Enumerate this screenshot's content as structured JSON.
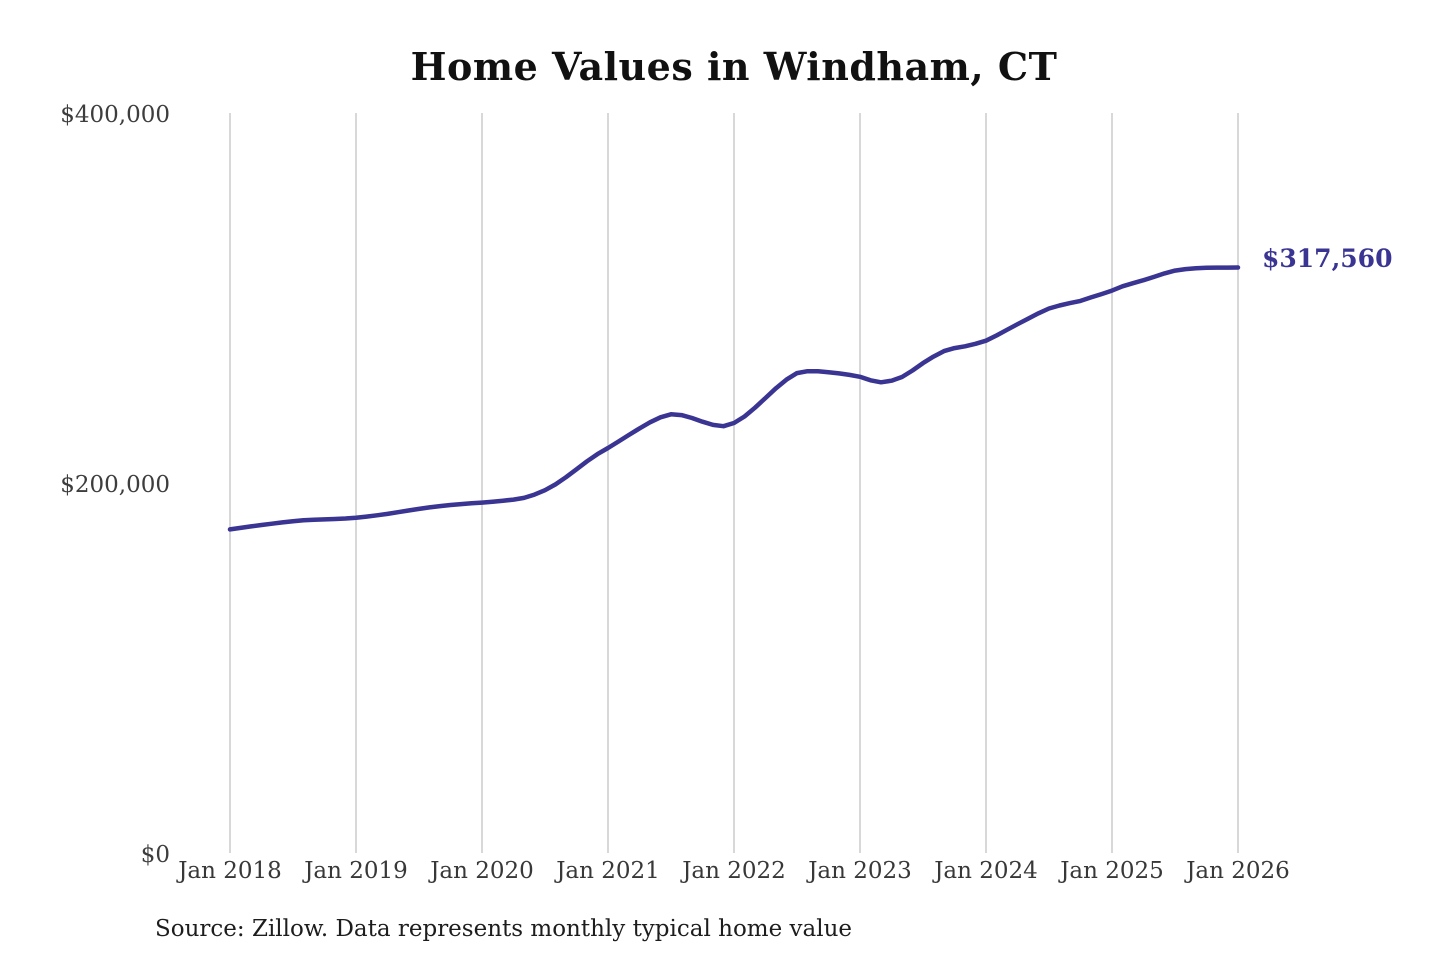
{
  "title": "Home Values in Windham, CT",
  "source_note": "Source: Zillow. Data represents monthly typical home value",
  "annotation": {
    "label": "$317,560",
    "color": "#3a3492"
  },
  "colors": {
    "line": "#3a3492",
    "gridline": "#cccccc",
    "background": "#ffffff",
    "title_text": "#111111",
    "tick_text": "#3d3d3d"
  },
  "chart_data": {
    "type": "line",
    "title": "Home Values in Windham, CT",
    "xlabel": "",
    "ylabel": "",
    "ylim": [
      0,
      400000
    ],
    "grid": "vertical-only",
    "legend": "none",
    "line_color": "#3a3492",
    "y_tick_labels": [
      "$0",
      "$200,000",
      "$400,000"
    ],
    "y_tick_values": [
      0,
      200000,
      400000
    ],
    "x_tick_labels": [
      "Jan 2018",
      "Jan 2019",
      "Jan 2020",
      "Jan 2021",
      "Jan 2022",
      "Jan 2023",
      "Jan 2024",
      "Jan 2025",
      "Jan 2026"
    ],
    "x_range": {
      "start": "2018-01",
      "end": "2026-01",
      "step": "monthly"
    },
    "end_label": "$317,560",
    "end_value": 317560,
    "series": [
      {
        "name": "Typical home value",
        "values": [
          176000,
          176800,
          177600,
          178400,
          179100,
          179800,
          180400,
          180900,
          181200,
          181400,
          181600,
          181900,
          182300,
          182900,
          183600,
          184400,
          185300,
          186200,
          187100,
          187900,
          188600,
          189200,
          189700,
          190100,
          190500,
          191000,
          191500,
          192100,
          193000,
          194800,
          197200,
          200300,
          204200,
          208500,
          212800,
          216700,
          220000,
          223500,
          227100,
          230600,
          233900,
          236600,
          238200,
          237800,
          236200,
          234200,
          232500,
          231800,
          233500,
          237000,
          241800,
          247000,
          252300,
          257000,
          260500,
          261500,
          261500,
          261000,
          260300,
          259500,
          258500,
          256600,
          255500,
          256400,
          258400,
          261900,
          265900,
          269400,
          272400,
          274000,
          275000,
          276300,
          278000,
          280800,
          283900,
          286900,
          289900,
          292800,
          295400,
          297000,
          298300,
          299500,
          301400,
          303200,
          305100,
          307400,
          309100,
          310700,
          312500,
          314400,
          315900,
          316700,
          317200,
          317400,
          317500,
          317540,
          317560
        ]
      }
    ]
  }
}
